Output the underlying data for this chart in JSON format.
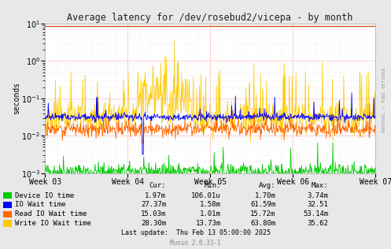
{
  "title": "Average latency for /dev/rosebud2/vicepa - by month",
  "ylabel": "seconds",
  "right_label": "RRDTOOL / TOBI OETIKER",
  "bg_color": "#e8e8e8",
  "plot_bg_color": "#ffffff",
  "xticklabels": [
    "Week 03",
    "Week 04",
    "Week 05",
    "Week 06",
    "Week 07"
  ],
  "legend": [
    {
      "label": "Device IO time",
      "color": "#00cc00"
    },
    {
      "label": "IO Wait time",
      "color": "#0000ff"
    },
    {
      "label": "Read IO Wait time",
      "color": "#ff6600"
    },
    {
      "label": "Write IO Wait time",
      "color": "#ffcc00"
    }
  ],
  "stats_header": [
    "Cur:",
    "Min:",
    "Avg:",
    "Max:"
  ],
  "stats": [
    [
      "1.97m",
      "106.01u",
      "1.70m",
      "3.74m"
    ],
    [
      "27.37m",
      "1.58m",
      "61.59m",
      "32.51"
    ],
    [
      "15.03m",
      "1.01m",
      "15.72m",
      "53.14m"
    ],
    [
      "28.30m",
      "13.73m",
      "63.80m",
      "35.62"
    ]
  ],
  "last_update": "Last update:  Thu Feb 13 05:00:00 2025",
  "munin_version": "Munin 2.0.33-1",
  "n_points": 700,
  "seed": 42
}
